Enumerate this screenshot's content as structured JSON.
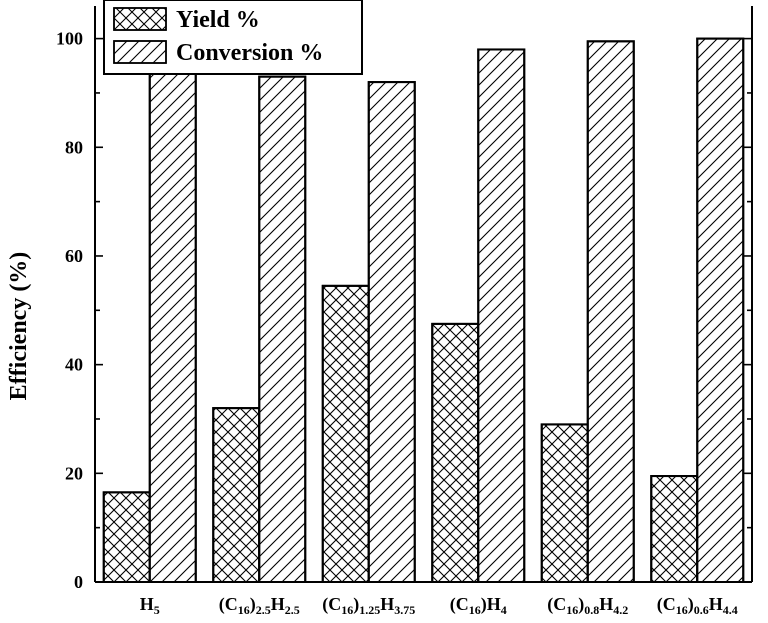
{
  "chart_data": {
    "type": "bar",
    "title": "",
    "xlabel": "",
    "ylabel": "Efficiency (%)",
    "ylim": [
      0,
      106
    ],
    "yticks": [
      0,
      20,
      40,
      60,
      80,
      100
    ],
    "grid": false,
    "legend_position": "top-left",
    "categories": [
      [
        {
          "t": "H"
        },
        {
          "t": "5",
          "sub": true
        }
      ],
      [
        {
          "t": "(C"
        },
        {
          "t": "16",
          "sub": true
        },
        {
          "t": ")"
        },
        {
          "t": "2.5",
          "sub": true
        },
        {
          "t": "H"
        },
        {
          "t": "2.5",
          "sub": true
        }
      ],
      [
        {
          "t": "(C"
        },
        {
          "t": "16",
          "sub": true
        },
        {
          "t": ")"
        },
        {
          "t": "1.25",
          "sub": true
        },
        {
          "t": "H"
        },
        {
          "t": "3.75",
          "sub": true
        }
      ],
      [
        {
          "t": "(C"
        },
        {
          "t": "16",
          "sub": true
        },
        {
          "t": ")H"
        },
        {
          "t": "4",
          "sub": true
        }
      ],
      [
        {
          "t": "(C"
        },
        {
          "t": "16",
          "sub": true
        },
        {
          "t": ")"
        },
        {
          "t": "0.8",
          "sub": true
        },
        {
          "t": "H"
        },
        {
          "t": "4.2",
          "sub": true
        }
      ],
      [
        {
          "t": "(C"
        },
        {
          "t": "16",
          "sub": true
        },
        {
          "t": ")"
        },
        {
          "t": "0.6",
          "sub": true
        },
        {
          "t": "H"
        },
        {
          "t": "4.4",
          "sub": true
        }
      ]
    ],
    "series": [
      {
        "name": "Yield %",
        "pattern": "crosshatch",
        "values": [
          16.5,
          32,
          54.5,
          47.5,
          29,
          19.5
        ]
      },
      {
        "name": "Conversion %",
        "pattern": "diagonal",
        "values": [
          98,
          93,
          92,
          98,
          99.5,
          100
        ]
      }
    ]
  }
}
